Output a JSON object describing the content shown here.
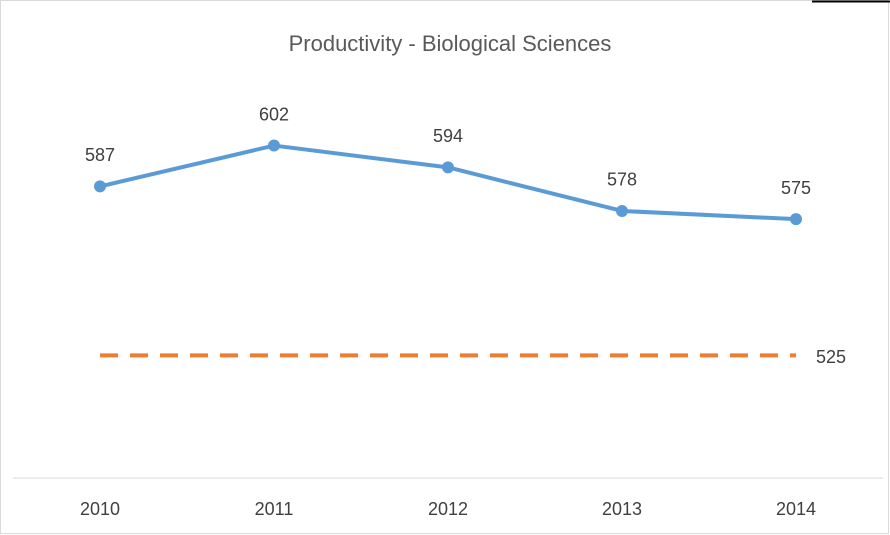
{
  "chart_data": {
    "type": "line",
    "title": "Productivity - Biological Sciences",
    "categories": [
      "2010",
      "2011",
      "2012",
      "2013",
      "2014"
    ],
    "series": [
      {
        "color": "#5b9bd5",
        "values": [
          587,
          602,
          594,
          578,
          575
        ],
        "line_style": "solid",
        "markers": true,
        "show_labels": "all"
      },
      {
        "color": "#ed7d31",
        "values": [
          525,
          525,
          525,
          525,
          525
        ],
        "line_style": "dashed",
        "markers": false,
        "show_labels": "last"
      }
    ],
    "ylim": [
      480,
      640
    ]
  }
}
